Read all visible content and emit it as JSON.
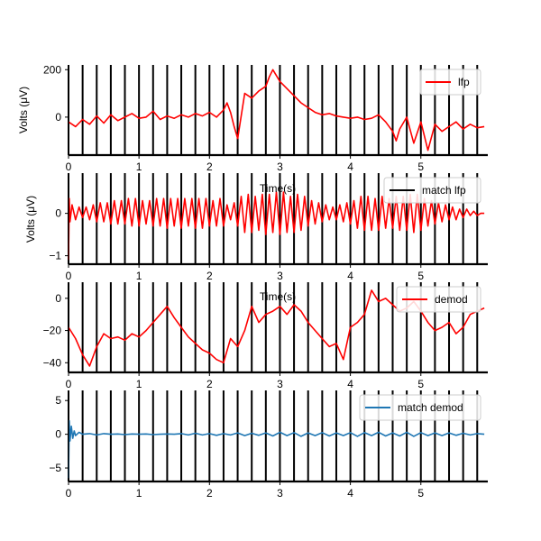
{
  "figure": {
    "background": "#ffffff"
  },
  "chart_data": [
    {
      "type": "line",
      "title": "",
      "xlabel": "",
      "ylabel": "Volts (μV)",
      "xlim": [
        0,
        5.95
      ],
      "ylim": [
        -160,
        220
      ],
      "xticks": [
        0,
        1,
        2,
        3,
        4,
        5
      ],
      "yticks": [
        0,
        200
      ],
      "grid": false,
      "legend_position": "top-right",
      "vlines": [
        0,
        0.2,
        0.4,
        0.6,
        0.8,
        1.0,
        1.2,
        1.4,
        1.6,
        1.8,
        2.0,
        2.2,
        2.4,
        2.6,
        2.8,
        3.0,
        3.2,
        3.4,
        3.6,
        3.8,
        4.0,
        4.2,
        4.4,
        4.6,
        4.8,
        5.0,
        5.2,
        5.4,
        5.6,
        5.8
      ],
      "series": [
        {
          "name": "lfp",
          "color": "#ff0000",
          "x": [
            0,
            0.1,
            0.2,
            0.3,
            0.4,
            0.5,
            0.6,
            0.7,
            0.8,
            0.9,
            1.0,
            1.1,
            1.2,
            1.3,
            1.4,
            1.5,
            1.6,
            1.7,
            1.8,
            1.9,
            2.0,
            2.1,
            2.2,
            2.25,
            2.3,
            2.35,
            2.4,
            2.5,
            2.6,
            2.7,
            2.8,
            2.85,
            2.9,
            3.0,
            3.1,
            3.2,
            3.3,
            3.4,
            3.5,
            3.6,
            3.7,
            3.8,
            3.9,
            4.0,
            4.1,
            4.2,
            4.3,
            4.4,
            4.5,
            4.6,
            4.65,
            4.7,
            4.8,
            4.9,
            5.0,
            5.1,
            5.2,
            5.3,
            5.4,
            5.5,
            5.6,
            5.7,
            5.8,
            5.9
          ],
          "values": [
            -20,
            -40,
            -10,
            -30,
            5,
            -25,
            10,
            -15,
            0,
            15,
            -5,
            0,
            25,
            -10,
            5,
            -5,
            10,
            0,
            15,
            5,
            20,
            0,
            30,
            60,
            20,
            -40,
            -90,
            100,
            80,
            110,
            130,
            170,
            200,
            150,
            120,
            90,
            60,
            40,
            20,
            10,
            15,
            5,
            0,
            -5,
            0,
            -10,
            -5,
            10,
            -20,
            -60,
            -100,
            -50,
            0,
            -110,
            -20,
            -140,
            -30,
            -60,
            -40,
            -20,
            -50,
            -30,
            -45,
            -40
          ]
        }
      ]
    },
    {
      "type": "line",
      "title": "",
      "xlabel": "Time(s)",
      "ylabel": "Volts (μV)",
      "xlim": [
        0,
        5.95
      ],
      "ylim": [
        -1.2,
        0.95
      ],
      "xticks": [
        0,
        1,
        2,
        3,
        4,
        5
      ],
      "yticks": [
        -1,
        0
      ],
      "grid": false,
      "legend_position": "top-right",
      "vlines": [
        0,
        0.2,
        0.4,
        0.6,
        0.8,
        1.0,
        1.2,
        1.4,
        1.6,
        1.8,
        2.0,
        2.2,
        2.4,
        2.6,
        2.8,
        3.0,
        3.2,
        3.4,
        3.6,
        3.8,
        4.0,
        4.2,
        4.4,
        4.6,
        4.8,
        5.0,
        5.2,
        5.4,
        5.6,
        5.8
      ],
      "series": [
        {
          "name": "match lfp",
          "color": "#000000",
          "x": [],
          "values": []
        },
        {
          "name": "",
          "color": "#ff0000",
          "x": [
            0,
            0.01,
            0.02,
            0.05,
            0.1,
            0.15,
            0.2,
            0.25,
            0.3,
            0.35,
            0.4,
            0.45,
            0.5,
            0.55,
            0.6,
            0.65,
            0.7,
            0.75,
            0.8,
            0.85,
            0.9,
            0.95,
            1.0,
            1.05,
            1.1,
            1.15,
            1.2,
            1.25,
            1.3,
            1.35,
            1.4,
            1.45,
            1.5,
            1.55,
            1.6,
            1.65,
            1.7,
            1.75,
            1.8,
            1.85,
            1.9,
            1.95,
            2.0,
            2.05,
            2.1,
            2.15,
            2.2,
            2.25,
            2.3,
            2.35,
            2.4,
            2.45,
            2.5,
            2.55,
            2.6,
            2.65,
            2.7,
            2.75,
            2.8,
            2.85,
            2.9,
            2.95,
            3.0,
            3.05,
            3.1,
            3.15,
            3.2,
            3.25,
            3.3,
            3.35,
            3.4,
            3.45,
            3.5,
            3.55,
            3.6,
            3.65,
            3.7,
            3.75,
            3.8,
            3.85,
            3.9,
            3.95,
            4.0,
            4.05,
            4.1,
            4.15,
            4.2,
            4.25,
            4.3,
            4.35,
            4.4,
            4.45,
            4.5,
            4.55,
            4.6,
            4.65,
            4.7,
            4.75,
            4.8,
            4.85,
            4.9,
            4.95,
            5.0,
            5.05,
            5.1,
            5.15,
            5.2,
            5.25,
            5.3,
            5.35,
            5.4,
            5.45,
            5.5,
            5.55,
            5.6,
            5.65,
            5.7,
            5.75,
            5.8,
            5.85,
            5.9
          ],
          "values": [
            -1.1,
            0.35,
            -0.2,
            0.2,
            -0.15,
            0.15,
            -0.1,
            0.15,
            -0.15,
            0.2,
            -0.2,
            0.25,
            -0.2,
            0.25,
            -0.25,
            0.3,
            -0.25,
            0.3,
            -0.25,
            0.35,
            -0.3,
            0.35,
            -0.3,
            0.3,
            -0.25,
            0.3,
            -0.3,
            0.35,
            -0.3,
            0.35,
            -0.35,
            0.35,
            -0.3,
            0.35,
            -0.35,
            0.35,
            -0.3,
            0.35,
            -0.35,
            0.35,
            -0.35,
            0.35,
            -0.3,
            0.3,
            -0.3,
            0.35,
            -0.3,
            0.2,
            -0.15,
            0.25,
            -0.3,
            0.4,
            -0.45,
            0.45,
            -0.45,
            0.4,
            -0.4,
            0.45,
            -0.5,
            0.45,
            -0.45,
            0.5,
            -0.5,
            0.5,
            -0.45,
            0.4,
            -0.45,
            0.45,
            -0.4,
            0.4,
            -0.3,
            0.3,
            -0.25,
            0.25,
            -0.2,
            0.2,
            -0.15,
            0.15,
            -0.15,
            0.2,
            -0.2,
            0.25,
            -0.25,
            0.3,
            -0.35,
            0.4,
            -0.4,
            0.4,
            -0.4,
            0.35,
            -0.4,
            0.4,
            -0.35,
            0.35,
            -0.35,
            0.4,
            -0.4,
            0.4,
            -0.4,
            0.45,
            -0.45,
            0.45,
            -0.4,
            0.35,
            -0.3,
            0.3,
            -0.25,
            0.25,
            -0.2,
            0.2,
            -0.15,
            0.15,
            -0.15,
            0.1,
            -0.1,
            0.1,
            -0.05,
            0.05,
            -0.05,
            0.0,
            0.0
          ]
        }
      ]
    },
    {
      "type": "line",
      "title": "",
      "xlabel": "Time(s)",
      "ylabel": "",
      "xlim": [
        0,
        5.95
      ],
      "ylim": [
        -46,
        10
      ],
      "xticks": [
        0,
        1,
        2,
        3,
        4,
        5
      ],
      "yticks": [
        -40,
        -20,
        0
      ],
      "grid": false,
      "legend_position": "top-right",
      "vlines": [
        0,
        0.2,
        0.4,
        0.6,
        0.8,
        1.0,
        1.2,
        1.4,
        1.6,
        1.8,
        2.0,
        2.2,
        2.4,
        2.6,
        2.8,
        3.0,
        3.2,
        3.4,
        3.6,
        3.8,
        4.0,
        4.2,
        4.4,
        4.6,
        4.8,
        5.0,
        5.2,
        5.4,
        5.6,
        5.8
      ],
      "series": [
        {
          "name": "demod",
          "color": "#ff0000",
          "x": [
            0,
            0.1,
            0.2,
            0.3,
            0.4,
            0.5,
            0.6,
            0.7,
            0.8,
            0.9,
            1.0,
            1.1,
            1.2,
            1.3,
            1.4,
            1.5,
            1.6,
            1.7,
            1.8,
            1.9,
            2.0,
            2.1,
            2.2,
            2.3,
            2.4,
            2.5,
            2.6,
            2.7,
            2.8,
            2.9,
            3.0,
            3.1,
            3.2,
            3.3,
            3.4,
            3.5,
            3.6,
            3.7,
            3.8,
            3.9,
            4.0,
            4.1,
            4.2,
            4.3,
            4.4,
            4.5,
            4.6,
            4.7,
            4.8,
            4.9,
            5.0,
            5.1,
            5.2,
            5.3,
            5.4,
            5.5,
            5.6,
            5.7,
            5.8,
            5.9
          ],
          "values": [
            -18,
            -25,
            -35,
            -42,
            -30,
            -22,
            -25,
            -24,
            -26,
            -22,
            -24,
            -20,
            -15,
            -10,
            -5,
            -12,
            -18,
            -24,
            -28,
            -32,
            -34,
            -38,
            -40,
            -25,
            -30,
            -20,
            -5,
            -15,
            -10,
            -8,
            -5,
            -10,
            -4,
            -8,
            -15,
            -20,
            -25,
            -30,
            -28,
            -38,
            -18,
            -15,
            -10,
            5,
            -2,
            0,
            -4,
            -8,
            -6,
            -2,
            -8,
            -15,
            -20,
            -18,
            -15,
            -22,
            -18,
            -10,
            -8,
            -6
          ]
        }
      ]
    },
    {
      "type": "line",
      "title": "",
      "xlabel": "",
      "ylabel": "",
      "xlim": [
        0,
        5.95
      ],
      "ylim": [
        -7,
        6.5
      ],
      "xticks": [
        0,
        1,
        2,
        3,
        4,
        5
      ],
      "yticks": [
        -5,
        0,
        5
      ],
      "grid": false,
      "legend_position": "top-right",
      "vlines": [
        0,
        0.2,
        0.4,
        0.6,
        0.8,
        1.0,
        1.2,
        1.4,
        1.6,
        1.8,
        2.0,
        2.2,
        2.4,
        2.6,
        2.8,
        3.0,
        3.2,
        3.4,
        3.6,
        3.8,
        4.0,
        4.2,
        4.4,
        4.6,
        4.8,
        5.0,
        5.2,
        5.4,
        5.6,
        5.8
      ],
      "series": [
        {
          "name": "match demod",
          "color": "#1f77b4",
          "x": [
            0,
            0.01,
            0.02,
            0.04,
            0.06,
            0.08,
            0.1,
            0.15,
            0.2,
            0.3,
            0.4,
            0.5,
            0.6,
            0.7,
            0.8,
            0.9,
            1.0,
            1.1,
            1.2,
            1.3,
            1.4,
            1.5,
            1.6,
            1.7,
            1.8,
            1.9,
            2.0,
            2.1,
            2.2,
            2.3,
            2.4,
            2.5,
            2.6,
            2.7,
            2.8,
            2.9,
            3.0,
            3.1,
            3.2,
            3.3,
            3.4,
            3.5,
            3.6,
            3.7,
            3.8,
            3.9,
            4.0,
            4.1,
            4.2,
            4.3,
            4.4,
            4.5,
            4.6,
            4.7,
            4.8,
            4.9,
            5.0,
            5.1,
            5.2,
            5.3,
            5.4,
            5.5,
            5.6,
            5.7,
            5.8,
            5.9
          ],
          "values": [
            -6.5,
            2.0,
            -1.0,
            1.2,
            -0.6,
            0.5,
            -0.2,
            0.3,
            0.0,
            0.1,
            -0.1,
            0.1,
            0.0,
            0.05,
            -0.05,
            0.05,
            0.0,
            0.05,
            -0.05,
            0.0,
            0.05,
            0.0,
            0.1,
            -0.1,
            0.15,
            -0.1,
            0.1,
            -0.15,
            0.1,
            -0.1,
            0.2,
            -0.2,
            0.15,
            -0.15,
            0.2,
            -0.25,
            0.3,
            -0.2,
            0.25,
            -0.3,
            0.2,
            -0.2,
            0.25,
            -0.25,
            0.2,
            -0.2,
            0.25,
            -0.3,
            0.25,
            -0.2,
            0.3,
            -0.25,
            0.2,
            -0.25,
            0.3,
            -0.3,
            0.25,
            -0.2,
            0.2,
            -0.2,
            0.2,
            -0.15,
            0.15,
            -0.1,
            0.1,
            0.0
          ]
        }
      ]
    }
  ]
}
